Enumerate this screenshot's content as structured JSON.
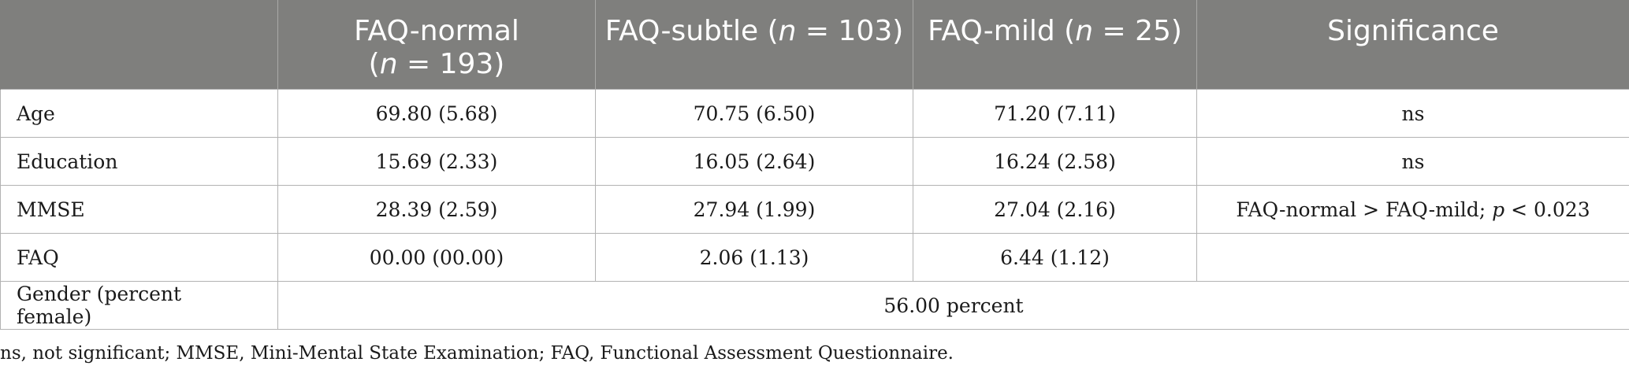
{
  "table": {
    "headers": [
      {
        "pre": "",
        "italic": "",
        "post": ""
      },
      {
        "pre": "FAQ-normal",
        "line2_italic": "n",
        "line2_post": " = 193)",
        "line2_pre": "("
      },
      {
        "pre": "FAQ-subtle (",
        "italic": "n",
        "post": " = 103)"
      },
      {
        "pre": "FAQ-mild (",
        "italic": "n",
        "post": " = 25)"
      },
      {
        "pre": "Significance",
        "italic": "",
        "post": ""
      }
    ],
    "rows": [
      {
        "label": "Age",
        "normal": "69.80 (5.68)",
        "subtle": "70.75 (6.50)",
        "mild": "71.20 (7.11)",
        "sig": "ns"
      },
      {
        "label": "Education",
        "normal": "15.69 (2.33)",
        "subtle": "16.05 (2.64)",
        "mild": "16.24 (2.58)",
        "sig": "ns"
      },
      {
        "label": "MMSE",
        "normal": "28.39 (2.59)",
        "subtle": "27.94 (1.99)",
        "mild": "27.04 (2.16)",
        "sig_pre": "FAQ-normal > FAQ-mild; ",
        "sig_italic": "p",
        "sig_post": " < 0.023"
      },
      {
        "label": "FAQ",
        "normal": "00.00 (00.00)",
        "subtle": "2.06 (1.13)",
        "mild": "6.44 (1.12)",
        "sig": ""
      }
    ],
    "gender_row": {
      "label": "Gender (percent female)",
      "value": "56.00 percent"
    }
  },
  "footnote": "ns, not significant; MMSE, Mini-Mental State Examination; FAQ, Functional Assessment Questionnaire."
}
